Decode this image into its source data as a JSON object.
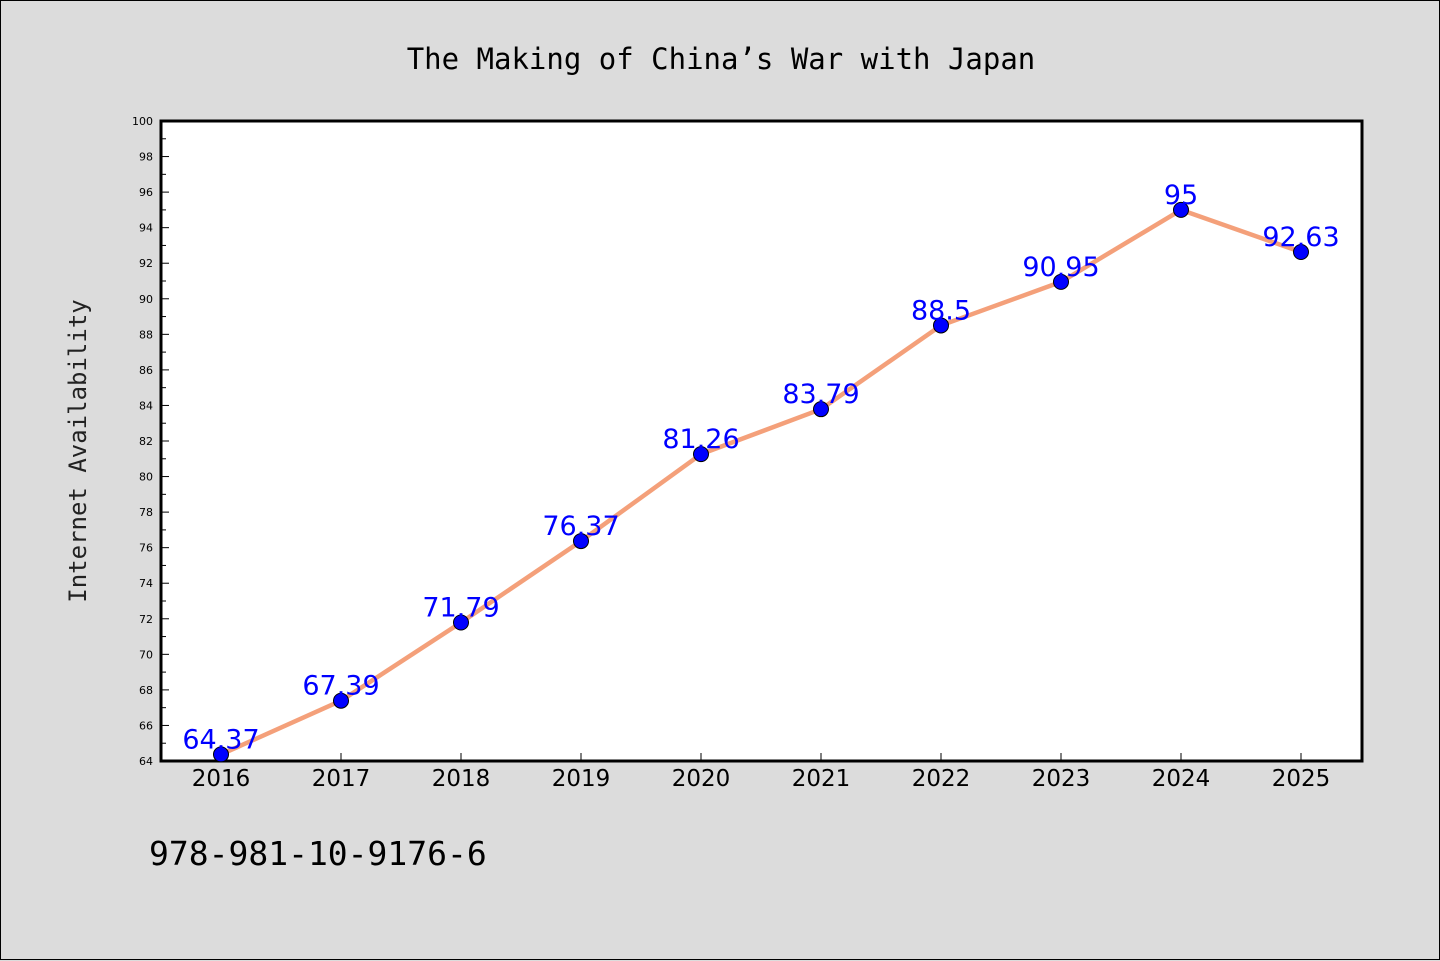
{
  "chart_data": {
    "type": "line",
    "title": "The Making of China’s War with Japan",
    "ylabel": "Internet Availability",
    "xlabel": "",
    "categories": [
      "2016",
      "2017",
      "2018",
      "2019",
      "2020",
      "2021",
      "2022",
      "2023",
      "2024",
      "2025"
    ],
    "series": [
      {
        "values": [
          64.37,
          67.39,
          71.79,
          76.37,
          81.26,
          83.79,
          88.5,
          90.95,
          95,
          92.63
        ],
        "data_labels": [
          "64.37",
          "67.39",
          "71.79",
          "76.37",
          "81.26",
          "83.79",
          "88.5",
          "90.95",
          "95",
          "92.63"
        ]
      }
    ],
    "ylim": [
      64,
      100
    ],
    "y_major_ticks": [
      "64",
      "66",
      "68",
      "70",
      "72",
      "74",
      "76",
      "78",
      "80",
      "82",
      "84",
      "86",
      "88",
      "90",
      "92",
      "94",
      "96",
      "98",
      "100"
    ],
    "grid": false,
    "legend": "none",
    "colors": {
      "line": "#f4a07a",
      "marker": "#0000ff",
      "data_label": "#0000ff",
      "background": "#dcdcdc",
      "plot_area": "#ffffff"
    }
  },
  "footer_text": "978-981-10-9176-6"
}
